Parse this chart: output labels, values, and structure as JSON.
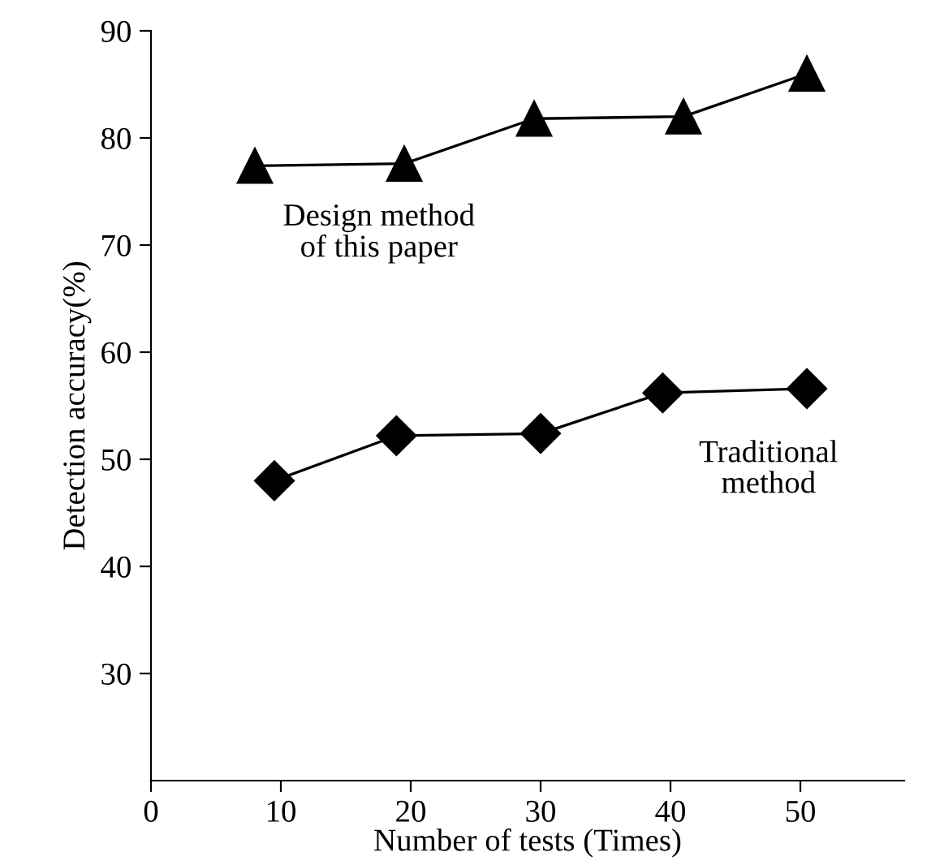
{
  "chart_data": {
    "type": "line",
    "xlabel": "Number of tests (Times)",
    "ylabel": "Detection accuracy(%)",
    "xlim": [
      0,
      58
    ],
    "xticks": [
      0,
      10,
      20,
      30,
      40,
      50
    ],
    "ylim": [
      20,
      90
    ],
    "yticks": [
      30,
      40,
      50,
      60,
      70,
      80,
      90
    ],
    "grid": false,
    "legend": false,
    "series": [
      {
        "name": "Design method\nof this paper",
        "color": "#000000",
        "marker": "triangle",
        "x": [
          8,
          19.5,
          29.5,
          41,
          50.5
        ],
        "values": [
          77.4,
          77.6,
          81.8,
          82.0,
          86.0
        ]
      },
      {
        "name": "Traditional\nmethod",
        "color": "#000000",
        "marker": "diamond",
        "x": [
          9.5,
          18.9,
          30,
          39.4,
          50.5
        ],
        "values": [
          48.0,
          52.2,
          52.4,
          56.2,
          56.6
        ]
      }
    ]
  }
}
